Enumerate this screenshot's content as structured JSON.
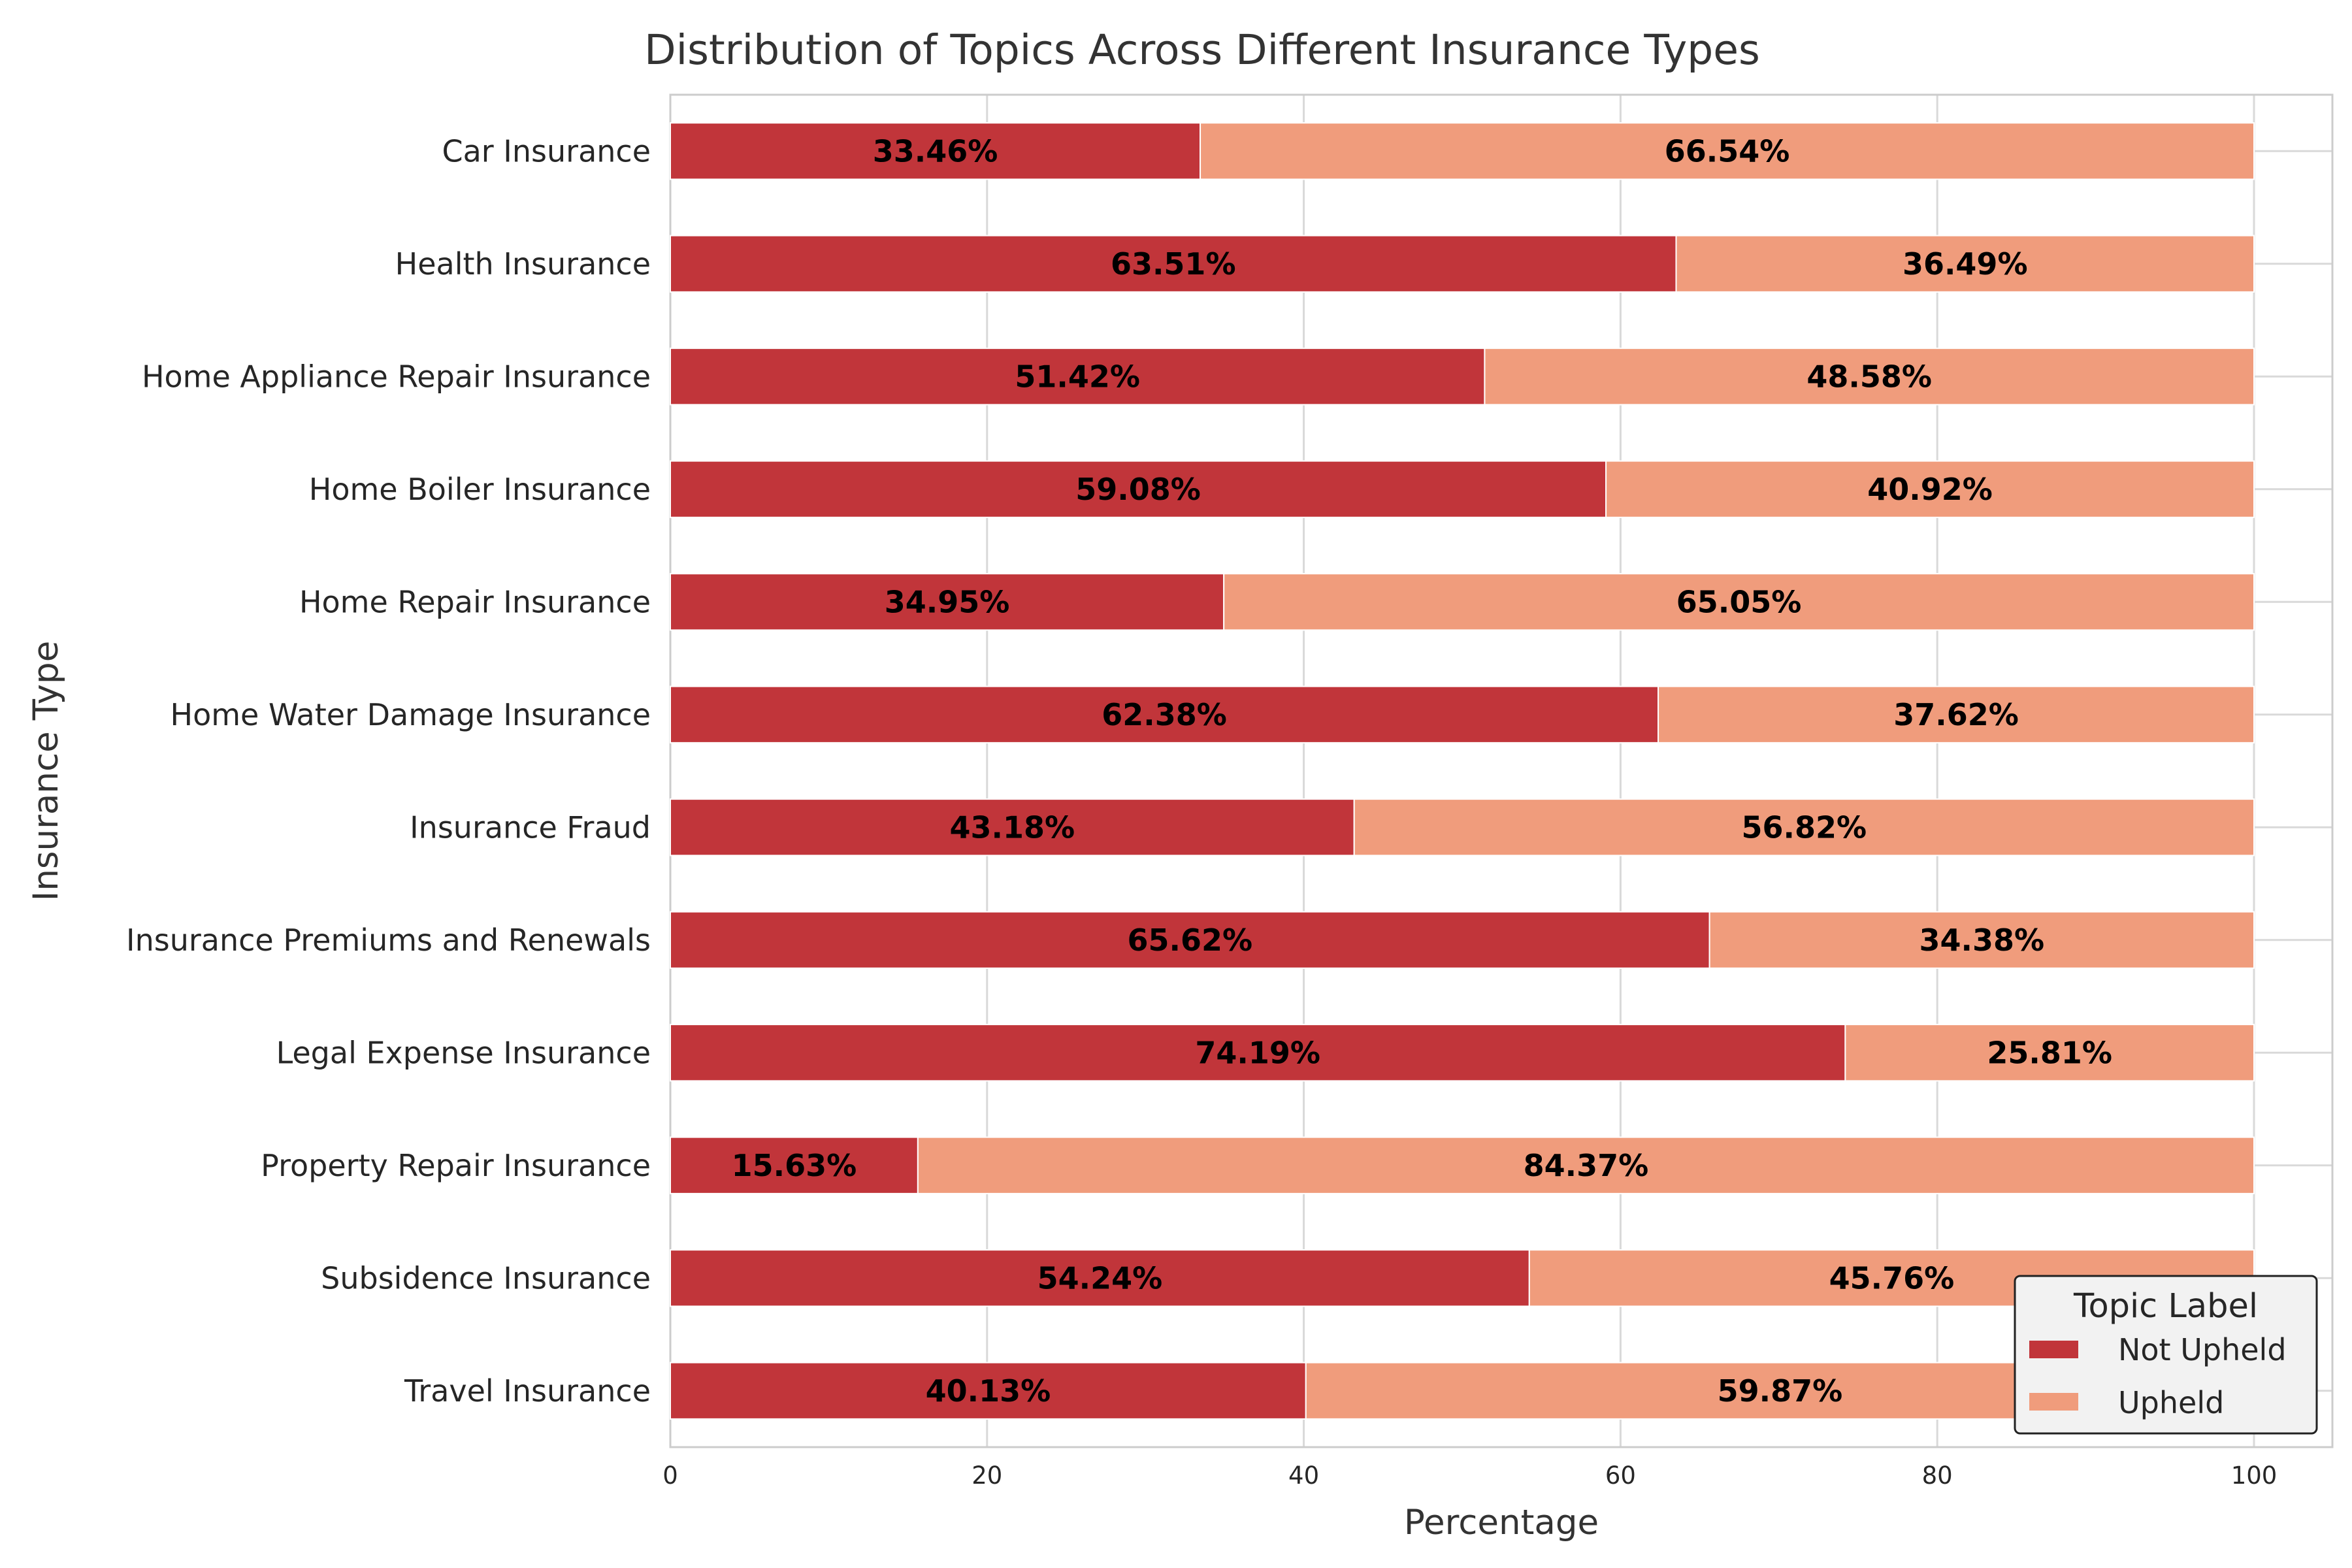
{
  "chart_data": {
    "type": "bar",
    "orientation": "horizontal",
    "stacked": true,
    "title": "Distribution of Topics Across Different Insurance Types",
    "xlabel": "Percentage",
    "ylabel": "Insurance Type",
    "xlim": [
      0,
      105
    ],
    "xticks": [
      0,
      20,
      40,
      60,
      80,
      100
    ],
    "grid": true,
    "legend": {
      "title": "Topic Label",
      "placement": "bottom-right"
    },
    "categories": [
      "Car Insurance",
      "Health Insurance",
      "Home Appliance Repair Insurance",
      "Home Boiler Insurance",
      "Home Repair Insurance",
      "Home Water Damage Insurance",
      "Insurance Fraud",
      "Insurance Premiums and Renewals",
      "Legal Expense Insurance",
      "Property Repair Insurance",
      "Subsidence Insurance",
      "Travel Insurance"
    ],
    "series": [
      {
        "name": "Not Upheld",
        "color": "#c1353a",
        "values": [
          33.46,
          63.51,
          51.42,
          59.08,
          34.95,
          62.38,
          43.18,
          65.62,
          74.19,
          15.63,
          54.24,
          40.13
        ],
        "labels": [
          "33.46%",
          "63.51%",
          "51.42%",
          "59.08%",
          "34.95%",
          "62.38%",
          "43.18%",
          "65.62%",
          "74.19%",
          "15.63%",
          "54.24%",
          "40.13%"
        ]
      },
      {
        "name": "Upheld",
        "color": "#f09c7c",
        "values": [
          66.54,
          36.49,
          48.58,
          40.92,
          65.05,
          37.62,
          56.82,
          34.38,
          25.81,
          84.37,
          45.76,
          59.87
        ],
        "labels": [
          "66.54%",
          "36.49%",
          "48.58%",
          "40.92%",
          "65.05%",
          "37.62%",
          "56.82%",
          "34.38%",
          "25.81%",
          "84.37%",
          "45.76%",
          "59.87%"
        ]
      }
    ]
  }
}
